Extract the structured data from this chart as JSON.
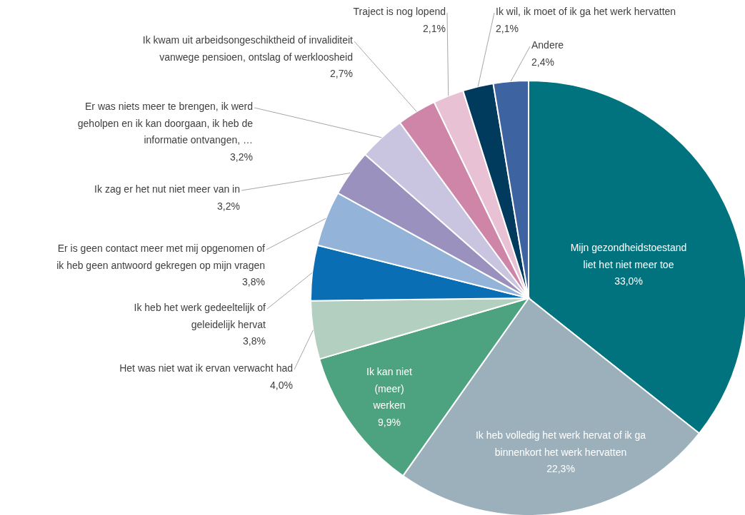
{
  "chart_data": {
    "type": "pie",
    "categories": [
      "Mijn gezondheidstoestand liet het niet meer toe",
      "Ik heb volledig het werk hervat of ik ga binnenkort het werk hervatten",
      "Ik kan niet (meer) werken",
      "Het was niet wat ik ervan verwacht had",
      "Ik heb het werk gedeeltelijk of geleidelijk hervat",
      "Er is geen contact meer met mij opgenomen of ik heb geen antwoord gekregen op mijn vragen",
      "Ik zag er het nut niet meer van in",
      "Er was niets meer te brengen, ik werd geholpen en ik kan doorgaan, ik heb de informatie ontvangen, …",
      "Ik kwam uit arbeidsongeschiktheid of invaliditeit vanwege pensioen, ontslag of werkloosheid",
      "Traject is nog lopend",
      "Ik wil, ik moet of ik ga het werk hervatten",
      "Andere"
    ],
    "values": [
      33.0,
      22.3,
      9.9,
      4.0,
      3.8,
      3.8,
      3.2,
      3.2,
      2.7,
      2.1,
      2.1,
      2.4
    ],
    "value_labels": [
      "33,0%",
      "22,3%",
      "9,9%",
      "4,0%",
      "3,8%",
      "3,8%",
      "3,2%",
      "3,2%",
      "2,7%",
      "2,1%",
      "2,1%",
      "2,4%"
    ],
    "colors": [
      "#00737f",
      "#9bb0bb",
      "#4da27f",
      "#b3cfc0",
      "#0a6eb4",
      "#93b3d8",
      "#9a91bf",
      "#c9c5e0",
      "#cf85a8",
      "#e8c2d4",
      "#003a5c",
      "#3d63a0"
    ]
  }
}
